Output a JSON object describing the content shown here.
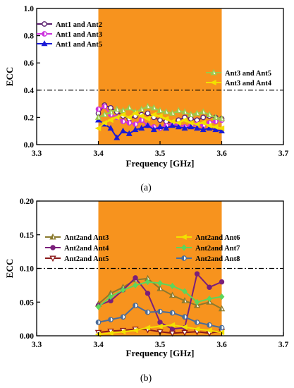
{
  "chart_data": [
    {
      "type": "line",
      "panel_label": "(a)",
      "xlabel": "Frequency [GHz]",
      "ylabel": "ECC",
      "xlim": [
        3.3,
        3.7
      ],
      "ylim": [
        0.0,
        1.0
      ],
      "xticks": [
        "3.3",
        "3.4",
        "3.5",
        "3.6",
        "3.7"
      ],
      "yticks": [
        "0.0",
        "0.2",
        "0.4",
        "0.6",
        "0.8",
        "1.0"
      ],
      "band": [
        3.4,
        3.6
      ],
      "band_color": "#f7931e",
      "threshold": 0.4,
      "x": [
        3.4,
        3.41,
        3.42,
        3.43,
        3.44,
        3.45,
        3.46,
        3.47,
        3.48,
        3.49,
        3.5,
        3.51,
        3.52,
        3.53,
        3.54,
        3.55,
        3.56,
        3.57,
        3.58,
        3.59,
        3.6
      ],
      "series": [
        {
          "name": "Ant1 and Ant2",
          "color": "#5a1e6e",
          "marker": "circle-open",
          "values": [
            0.23,
            0.29,
            0.27,
            0.24,
            0.21,
            0.19,
            0.21,
            0.22,
            0.23,
            0.2,
            0.18,
            0.17,
            0.16,
            0.18,
            0.2,
            0.19,
            0.18,
            0.2,
            0.21,
            0.2,
            0.19
          ]
        },
        {
          "name": "Ant1 and Ant3",
          "color": "#cc33dd",
          "marker": "circle-half",
          "values": [
            0.26,
            0.28,
            0.22,
            0.2,
            0.17,
            0.16,
            0.15,
            0.18,
            0.14,
            0.13,
            0.12,
            0.14,
            0.15,
            0.15,
            0.13,
            0.14,
            0.15,
            0.14,
            0.16,
            0.17,
            0.18
          ]
        },
        {
          "name": "Ant1 and Ant5",
          "color": "#1a1ad6",
          "marker": "triangle-filled",
          "values": [
            0.18,
            0.15,
            0.12,
            0.05,
            0.1,
            0.08,
            0.11,
            0.12,
            0.14,
            0.11,
            0.13,
            0.12,
            0.14,
            0.13,
            0.12,
            0.13,
            0.12,
            0.11,
            0.12,
            0.11,
            0.1
          ]
        },
        {
          "name": "Ant3 and Ant5",
          "color": "#9cc94a",
          "marker": "triangle-half",
          "values": [
            0.2,
            0.22,
            0.24,
            0.26,
            0.25,
            0.27,
            0.24,
            0.26,
            0.28,
            0.27,
            0.25,
            0.24,
            0.23,
            0.25,
            0.24,
            0.22,
            0.23,
            0.24,
            0.22,
            0.2,
            0.19
          ]
        },
        {
          "name": "Ant3 and Ant4",
          "color": "#f2e100",
          "marker": "triangle-left",
          "values": [
            0.12,
            0.16,
            0.18,
            0.2,
            0.22,
            0.2,
            0.23,
            0.21,
            0.19,
            0.22,
            0.21,
            0.19,
            0.17,
            0.16,
            0.18,
            0.16,
            0.15,
            0.16,
            0.14,
            0.13,
            0.12
          ]
        }
      ],
      "legend_left": [
        "Ant1 and Ant2",
        "Ant1 and Ant3",
        "Ant1 and Ant5"
      ],
      "legend_right": [
        "Ant3 and Ant5",
        "Ant3 and Ant4"
      ]
    },
    {
      "type": "line",
      "panel_label": "(b)",
      "xlabel": "Frequency [GHz]",
      "ylabel": "ECC",
      "xlim": [
        3.3,
        3.7
      ],
      "ylim": [
        0.0,
        0.2
      ],
      "xticks": [
        "3.3",
        "3.4",
        "3.5",
        "3.6",
        "3.7"
      ],
      "yticks": [
        "0.00",
        "0.05",
        "0.10",
        "0.15",
        "0.20"
      ],
      "band": [
        3.4,
        3.6
      ],
      "band_color": "#f7931e",
      "threshold": 0.1,
      "x": [
        3.4,
        3.42,
        3.44,
        3.46,
        3.48,
        3.5,
        3.52,
        3.54,
        3.56,
        3.58,
        3.6
      ],
      "series": [
        {
          "name": "Ant2and Ant3",
          "color": "#8a7a2e",
          "marker": "triangle-half",
          "values": [
            0.047,
            0.063,
            0.072,
            0.083,
            0.085,
            0.07,
            0.06,
            0.052,
            0.045,
            0.05,
            0.04
          ]
        },
        {
          "name": "Ant2and Ant4",
          "color": "#7a1f7a",
          "marker": "circle-filled",
          "values": [
            0.045,
            0.052,
            0.068,
            0.086,
            0.063,
            0.02,
            0.01,
            0.012,
            0.092,
            0.072,
            0.08
          ]
        },
        {
          "name": "Ant2and Ant5",
          "color": "#8b1a1a",
          "marker": "triangle-down-open",
          "values": [
            0.005,
            0.007,
            0.008,
            0.01,
            0.009,
            0.006,
            0.004,
            0.005,
            0.006,
            0.004,
            0.007
          ]
        },
        {
          "name": "Ant2and Ant6",
          "color": "#f2e100",
          "marker": "triangle-left",
          "values": [
            0.002,
            0.004,
            0.006,
            0.008,
            0.012,
            0.014,
            0.016,
            0.013,
            0.01,
            0.008,
            0.005
          ]
        },
        {
          "name": "Ant2and Ant7",
          "color": "#5cd65c",
          "marker": "diamond-filled",
          "values": [
            0.043,
            0.058,
            0.068,
            0.075,
            0.08,
            0.078,
            0.074,
            0.066,
            0.05,
            0.055,
            0.058
          ]
        },
        {
          "name": "Ant2and Ant8",
          "color": "#4a6c9a",
          "marker": "circle-half",
          "values": [
            0.02,
            0.024,
            0.028,
            0.045,
            0.035,
            0.036,
            0.034,
            0.028,
            0.02,
            0.016,
            0.012
          ]
        }
      ],
      "legend_left": [
        "Ant2and Ant3",
        "Ant2and Ant4",
        "Ant2and Ant5"
      ],
      "legend_right": [
        "Ant2and Ant6",
        "Ant2and Ant7",
        "Ant2and Ant8"
      ]
    }
  ]
}
